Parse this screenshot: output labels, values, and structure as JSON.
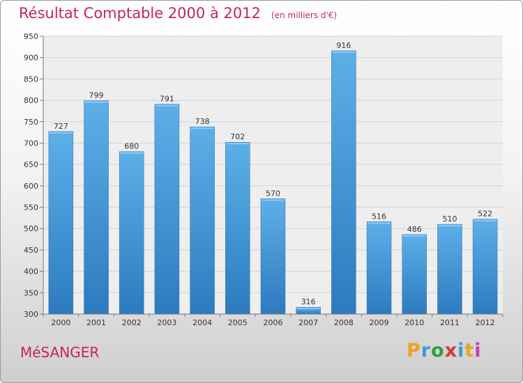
{
  "header": {
    "title": "Résultat Comptable 2000 à 2012",
    "unit": "(en milliers d'€)"
  },
  "footer": {
    "town": "MéSANGER",
    "logo": {
      "letters": [
        "P",
        "r",
        "o",
        "x",
        "i",
        "t",
        "i"
      ],
      "colors": [
        "#f0a020",
        "#3a9ad9",
        "#2f9e44",
        "#d93636",
        "#3a9ad9",
        "#f0a020",
        "#c83cb4"
      ]
    }
  },
  "chart_data": {
    "type": "bar",
    "categories": [
      "2000",
      "2001",
      "2002",
      "2003",
      "2004",
      "2005",
      "2006",
      "2007",
      "2008",
      "2009",
      "2010",
      "2011",
      "2012"
    ],
    "values": [
      727,
      799,
      680,
      791,
      738,
      702,
      570,
      316,
      916,
      516,
      486,
      510,
      522
    ],
    "data_labels": [
      "727",
      "799",
      "680",
      "791",
      "738",
      "702",
      "570",
      "316",
      "916",
      "516",
      "486",
      "510",
      "522"
    ],
    "title": "Résultat Comptable 2000 à 2012",
    "xlabel": "",
    "ylabel": "",
    "ylim": [
      300,
      950
    ],
    "yticks": [
      300,
      350,
      400,
      450,
      500,
      550,
      600,
      650,
      700,
      750,
      800,
      850,
      900,
      950
    ],
    "grid": true,
    "bar_color": "#4a9fe0",
    "bar_color_light": "#5dafe8",
    "bar_color_dark": "#2d7bbf"
  }
}
